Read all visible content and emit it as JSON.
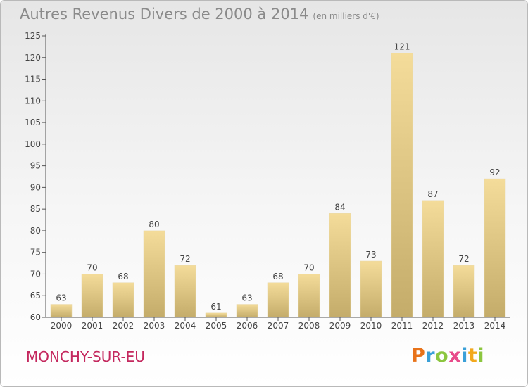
{
  "chart_data": {
    "type": "bar",
    "title": "Autres Revenus Divers de 2000 à 2014",
    "subtitle": "(en milliers d'€)",
    "categories": [
      "2000",
      "2001",
      "2002",
      "2003",
      "2004",
      "2005",
      "2006",
      "2007",
      "2008",
      "2009",
      "2010",
      "2011",
      "2012",
      "2013",
      "2014"
    ],
    "values": [
      63,
      70,
      68,
      80,
      72,
      61,
      63,
      68,
      70,
      84,
      73,
      121,
      87,
      72,
      92
    ],
    "xlabel": "",
    "ylabel": "",
    "ylim": [
      60,
      125
    ],
    "yticks": [
      60,
      65,
      70,
      75,
      80,
      85,
      90,
      95,
      100,
      105,
      110,
      115,
      120,
      125
    ],
    "grid": false,
    "legend": "none",
    "colors": {
      "bar_light": "#f4dc9a",
      "bar_dark": "#c4ac6a",
      "axis": "#555555"
    }
  },
  "footer": {
    "city": "MONCHY-SUR-EU",
    "logo_letters": [
      "P",
      "r",
      "o",
      "x",
      "i",
      "t",
      "i"
    ],
    "logo_colors": [
      "#e8731a",
      "#3aa0d8",
      "#8cc63f",
      "#e84a8a",
      "#3aa0d8",
      "#f2a81d",
      "#8cc63f"
    ]
  }
}
